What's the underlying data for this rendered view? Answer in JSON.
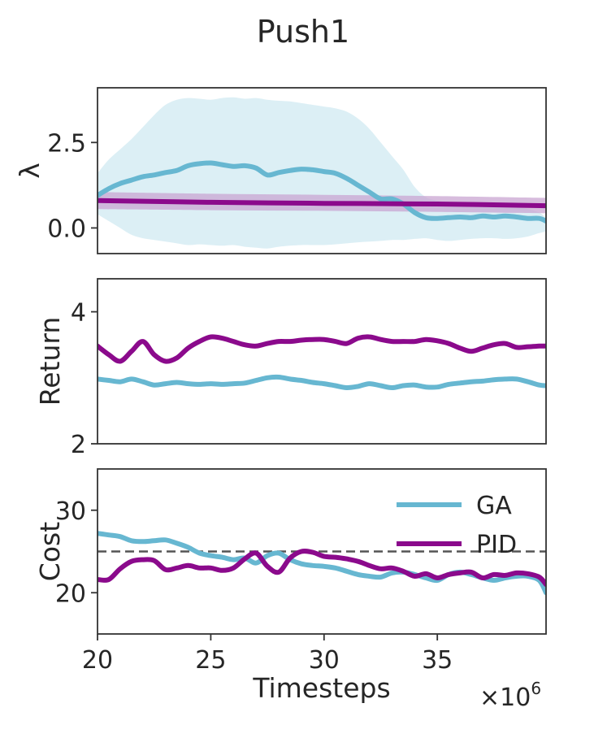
{
  "figure": {
    "title": "Push1",
    "xlabel": "Timesteps",
    "xscale_label": "×10",
    "xscale_exp": "6"
  },
  "colors": {
    "ga": "#67b7d1",
    "pid": "#8b0a8c",
    "ga_band": "#d6ecf3",
    "pid_band": "#c9a6d2",
    "threshold": "#555555",
    "axis": "#333333",
    "text": "#262626"
  },
  "chart_data": [
    {
      "type": "line",
      "ylabel": "λ",
      "xlim": [
        20,
        39.8
      ],
      "ylim": [
        -0.75,
        4.1
      ],
      "yticks": [
        0.0,
        2.5
      ],
      "ytick_labels": [
        "0.0",
        "2.5"
      ],
      "series": [
        {
          "name": "GA",
          "x": [
            20,
            20.5,
            21,
            21.5,
            22,
            22.5,
            23,
            23.5,
            24,
            24.5,
            25,
            25.5,
            26,
            26.5,
            27,
            27.5,
            28,
            28.5,
            29,
            29.5,
            30,
            30.5,
            31,
            31.5,
            32,
            32.5,
            33,
            33.5,
            34,
            34.5,
            35,
            35.5,
            36,
            36.5,
            37,
            37.5,
            38,
            38.5,
            39,
            39.5,
            39.8
          ],
          "y": [
            0.95,
            1.15,
            1.3,
            1.4,
            1.5,
            1.55,
            1.62,
            1.68,
            1.82,
            1.88,
            1.9,
            1.85,
            1.8,
            1.82,
            1.75,
            1.55,
            1.62,
            1.68,
            1.72,
            1.7,
            1.65,
            1.6,
            1.45,
            1.25,
            1.05,
            0.85,
            0.85,
            0.7,
            0.45,
            0.3,
            0.28,
            0.3,
            0.32,
            0.3,
            0.35,
            0.32,
            0.35,
            0.32,
            0.28,
            0.28,
            0.2
          ],
          "lower": [
            0.4,
            0.2,
            0.0,
            -0.2,
            -0.3,
            -0.35,
            -0.4,
            -0.45,
            -0.5,
            -0.48,
            -0.5,
            -0.52,
            -0.5,
            -0.55,
            -0.58,
            -0.6,
            -0.55,
            -0.52,
            -0.5,
            -0.5,
            -0.5,
            -0.48,
            -0.45,
            -0.42,
            -0.4,
            -0.38,
            -0.35,
            -0.35,
            -0.32,
            -0.3,
            -0.35,
            -0.38,
            -0.35,
            -0.32,
            -0.3,
            -0.3,
            -0.32,
            -0.3,
            -0.25,
            -0.15,
            -0.1
          ],
          "upper": [
            1.6,
            2.0,
            2.3,
            2.6,
            2.95,
            3.3,
            3.6,
            3.75,
            3.8,
            3.78,
            3.75,
            3.8,
            3.82,
            3.78,
            3.8,
            3.75,
            3.72,
            3.7,
            3.65,
            3.6,
            3.55,
            3.5,
            3.4,
            3.2,
            2.9,
            2.5,
            2.1,
            1.7,
            1.2,
            0.9,
            0.8,
            0.75,
            0.7,
            0.68,
            0.68,
            0.66,
            0.65,
            0.62,
            0.55,
            0.45,
            0.3
          ]
        },
        {
          "name": "PID",
          "x": [
            20,
            25,
            30,
            35,
            39.8
          ],
          "y": [
            0.8,
            0.75,
            0.72,
            0.7,
            0.65
          ],
          "lower": [
            0.55,
            0.52,
            0.5,
            0.47,
            0.43
          ],
          "upper": [
            1.05,
            1.0,
            0.97,
            0.93,
            0.88
          ]
        }
      ]
    },
    {
      "type": "line",
      "ylabel": "Return",
      "xlim": [
        20,
        39.8
      ],
      "ylim": [
        2,
        4.5
      ],
      "yticks": [
        2,
        4
      ],
      "ytick_labels": [
        "2",
        "4"
      ],
      "series": [
        {
          "name": "GA",
          "x": [
            20,
            20.5,
            21,
            21.5,
            22,
            22.5,
            23,
            23.5,
            24,
            24.5,
            25,
            25.5,
            26,
            26.5,
            27,
            27.5,
            28,
            28.5,
            29,
            29.5,
            30,
            30.5,
            31,
            31.5,
            32,
            32.5,
            33,
            33.5,
            34,
            34.5,
            35,
            35.5,
            36,
            36.5,
            37,
            37.5,
            38,
            38.5,
            39,
            39.5,
            39.8
          ],
          "y": [
            2.98,
            2.96,
            2.94,
            2.98,
            2.94,
            2.89,
            2.91,
            2.93,
            2.91,
            2.9,
            2.91,
            2.9,
            2.91,
            2.92,
            2.96,
            3.0,
            3.01,
            2.98,
            2.96,
            2.93,
            2.91,
            2.88,
            2.85,
            2.87,
            2.91,
            2.88,
            2.85,
            2.88,
            2.89,
            2.86,
            2.86,
            2.9,
            2.92,
            2.94,
            2.95,
            2.97,
            2.98,
            2.98,
            2.94,
            2.89,
            2.88
          ]
        },
        {
          "name": "PID",
          "x": [
            20,
            20.5,
            21,
            21.5,
            22,
            22.5,
            23,
            23.5,
            24,
            24.5,
            25,
            25.5,
            26,
            26.5,
            27,
            27.5,
            28,
            28.5,
            29,
            29.5,
            30,
            30.5,
            31,
            31.5,
            32,
            32.5,
            33,
            33.5,
            34,
            34.5,
            35,
            35.5,
            36,
            36.5,
            37,
            37.5,
            38,
            38.5,
            39,
            39.5,
            39.8
          ],
          "y": [
            3.48,
            3.35,
            3.25,
            3.4,
            3.55,
            3.35,
            3.25,
            3.3,
            3.45,
            3.55,
            3.62,
            3.6,
            3.55,
            3.5,
            3.48,
            3.52,
            3.55,
            3.55,
            3.57,
            3.58,
            3.58,
            3.55,
            3.52,
            3.6,
            3.62,
            3.58,
            3.55,
            3.55,
            3.55,
            3.58,
            3.56,
            3.52,
            3.45,
            3.4,
            3.45,
            3.5,
            3.52,
            3.46,
            3.47,
            3.48,
            3.48
          ]
        }
      ]
    },
    {
      "type": "line",
      "ylabel": "Cost",
      "xlim": [
        20,
        39.8
      ],
      "ylim": [
        15,
        35
      ],
      "yticks": [
        20,
        30
      ],
      "ytick_labels": [
        "20",
        "30"
      ],
      "threshold": 25,
      "legend": {
        "location": "upper-right",
        "entries": [
          "GA",
          "PID"
        ]
      },
      "series": [
        {
          "name": "GA",
          "x": [
            20,
            20.5,
            21,
            21.5,
            22,
            22.5,
            23,
            23.5,
            24,
            24.5,
            25,
            25.5,
            26,
            26.5,
            27,
            27.5,
            28,
            28.5,
            29,
            29.5,
            30,
            30.5,
            31,
            31.5,
            32,
            32.5,
            33,
            33.5,
            34,
            34.5,
            35,
            35.5,
            36,
            36.5,
            37,
            37.5,
            38,
            38.5,
            39,
            39.5,
            39.8
          ],
          "y": [
            27.2,
            27.0,
            26.8,
            26.3,
            26.2,
            26.3,
            26.4,
            26.0,
            25.5,
            24.8,
            24.5,
            24.3,
            24.0,
            24.2,
            23.6,
            24.5,
            24.8,
            24.0,
            23.5,
            23.3,
            23.2,
            23.0,
            22.6,
            22.2,
            22.0,
            21.9,
            22.4,
            22.5,
            22.2,
            21.8,
            21.5,
            22.2,
            22.5,
            22.2,
            21.8,
            21.5,
            21.8,
            22.0,
            22.0,
            21.5,
            20.0
          ]
        },
        {
          "name": "PID",
          "x": [
            20,
            20.5,
            21,
            21.5,
            22,
            22.5,
            23,
            23.5,
            24,
            24.5,
            25,
            25.5,
            26,
            26.5,
            27,
            27.5,
            28,
            28.5,
            29,
            29.5,
            30,
            30.5,
            31,
            31.5,
            32,
            32.5,
            33,
            33.5,
            34,
            34.5,
            35,
            35.5,
            36,
            36.5,
            37,
            37.5,
            38,
            38.5,
            39,
            39.5,
            39.8
          ],
          "y": [
            21.6,
            21.6,
            22.9,
            23.8,
            24.0,
            23.9,
            22.8,
            23.0,
            23.3,
            23.0,
            23.0,
            22.7,
            23.0,
            24.1,
            24.8,
            23.2,
            22.5,
            24.2,
            25.0,
            24.9,
            24.4,
            24.3,
            24.1,
            23.8,
            23.3,
            22.9,
            23.0,
            22.6,
            22.0,
            22.3,
            21.8,
            22.2,
            22.4,
            22.5,
            21.8,
            22.2,
            22.1,
            22.4,
            22.3,
            21.9,
            21.0
          ]
        }
      ]
    }
  ],
  "xaxis": {
    "ticks": [
      20,
      25,
      30,
      35
    ],
    "tick_labels": [
      "20",
      "25",
      "30",
      "35"
    ]
  }
}
